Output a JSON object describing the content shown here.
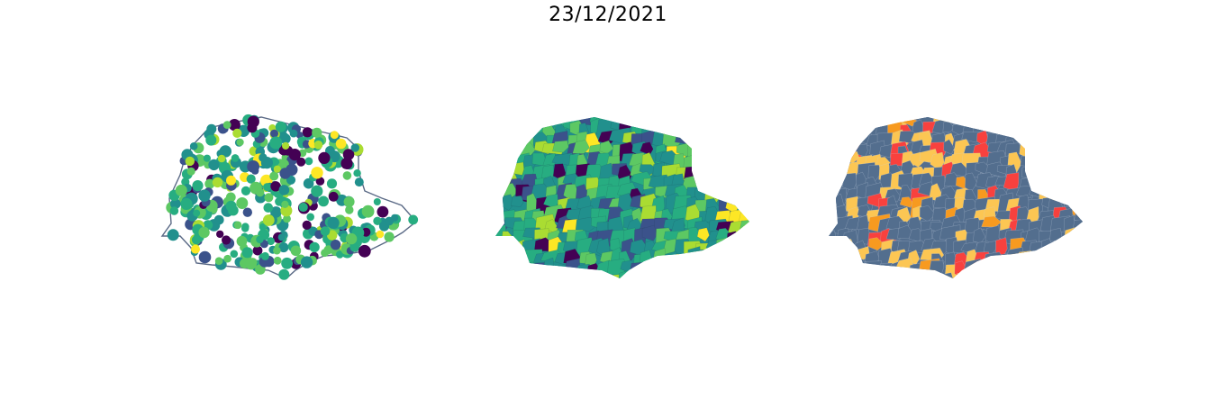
{
  "title": "23/12/2021",
  "panels": [
    {
      "kind": "points",
      "outline_color": "#5b6a86"
    },
    {
      "kind": "choropleth",
      "palette": "viridis"
    },
    {
      "kind": "categorical",
      "colors": [
        "#536e8e",
        "#fcc653",
        "#f8413e",
        "#f79a1f"
      ]
    }
  ],
  "viridis": [
    "#440154",
    "#3b528b",
    "#21908d",
    "#27ad81",
    "#5dc863",
    "#aadc32",
    "#fde725"
  ]
}
